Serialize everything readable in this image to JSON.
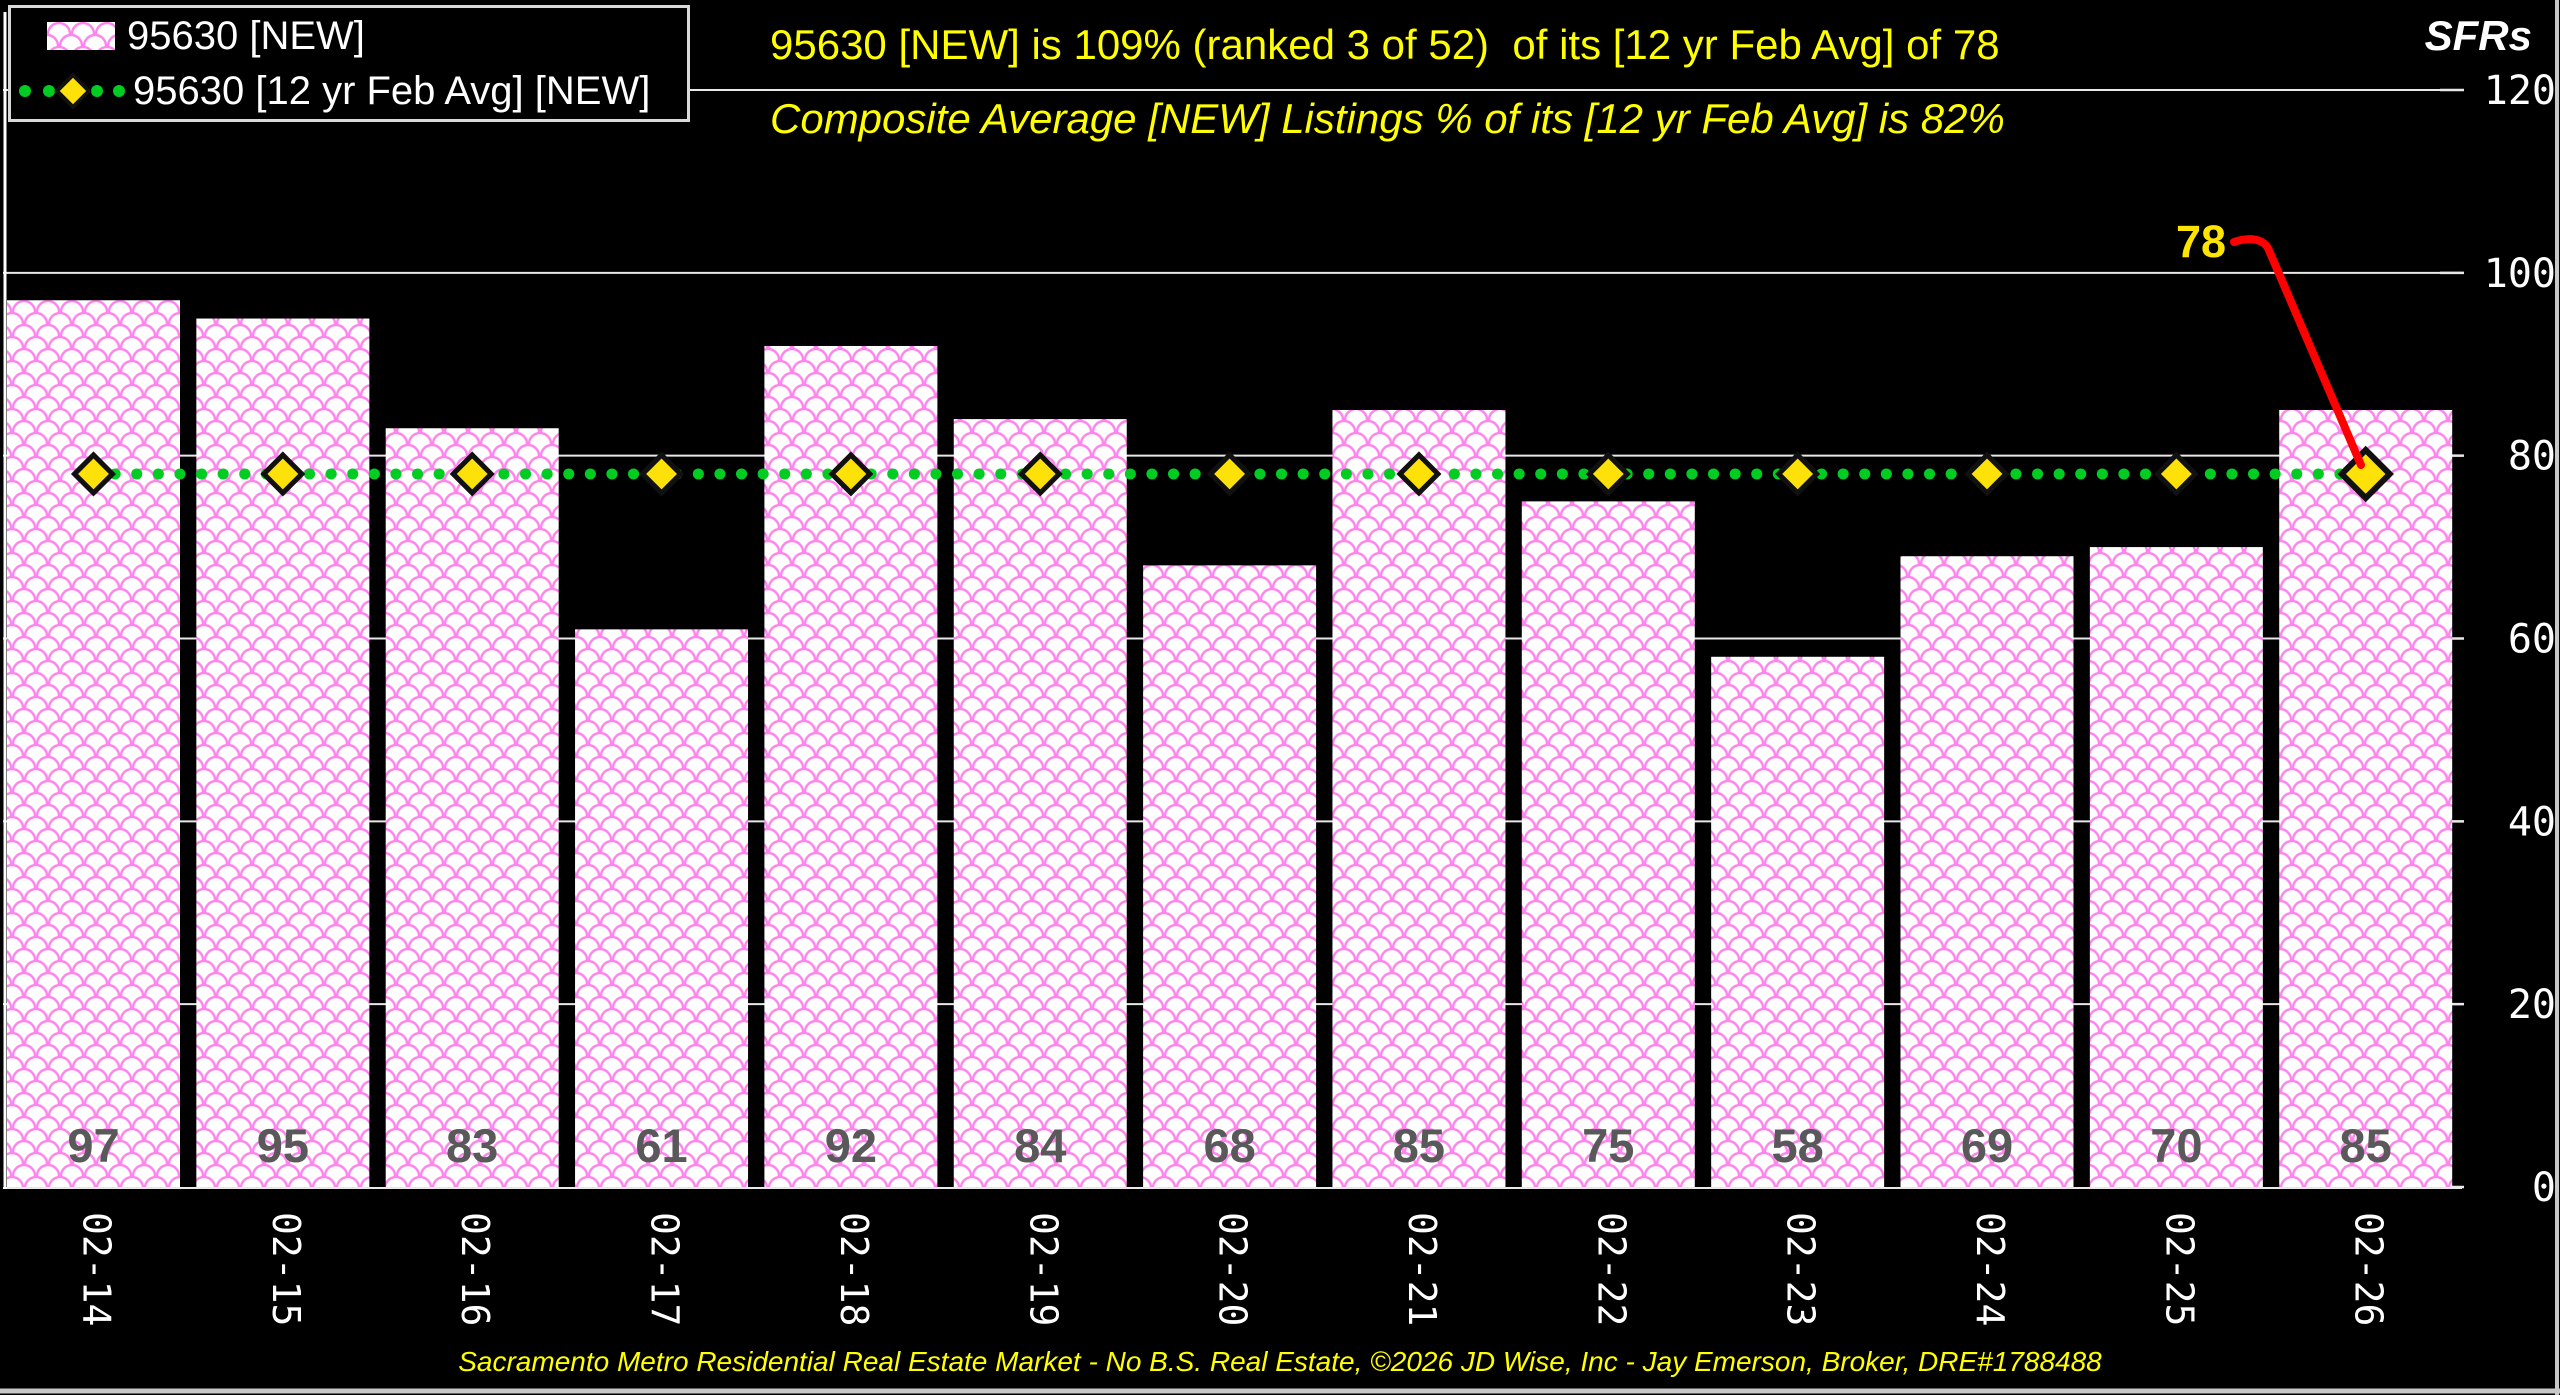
{
  "header": {
    "title_line1": "95630 [NEW] is 109% (ranked 3 of 52)  of its [12 yr Feb Avg] of 78",
    "title_line2": "Composite Average [NEW] Listings % of its [12 yr Feb Avg] is 82%",
    "axis_unit_label": "SFRs"
  },
  "legend": {
    "series1_label": "95630 [NEW]",
    "series2_label": "95630 [12 yr Feb Avg] [NEW]"
  },
  "annotation": {
    "avg_callout": "78"
  },
  "footer": {
    "credit": "Sacramento Metro Residential Real Estate Market - No B.S. Real Estate, ©2026 JD Wise, Inc - Jay Emerson, Broker, DRE#1788488"
  },
  "colors": {
    "background": "#000000",
    "bar_pattern_pink": "#FF85EE",
    "bar_fill": "#FFFFFF",
    "avg_line_green": "#00CC22",
    "marker_yellow": "#FFE10A",
    "marker_outline": "#111111",
    "title_yellow": "#FFFF00",
    "value_label_gray": "#595959",
    "grid_white": "#E8E8E8",
    "callout_red": "#FF0000",
    "frame_gray": "#C8C8C8",
    "text_white": "#FFFFFF"
  },
  "chart_data": {
    "type": "bar",
    "title": "95630 [NEW] is 109% (ranked 3 of 52)  of its [12 yr Feb Avg] of 78",
    "subtitle": "Composite Average [NEW] Listings % of its [12 yr Feb Avg] is 82%",
    "categories": [
      "02-14",
      "02-15",
      "02-16",
      "02-17",
      "02-18",
      "02-19",
      "02-20",
      "02-21",
      "02-22",
      "02-23",
      "02-24",
      "02-25",
      "02-26"
    ],
    "series": [
      {
        "name": "95630 [NEW]",
        "type": "bar",
        "values": [
          97,
          95,
          83,
          61,
          92,
          84,
          68,
          85,
          75,
          58,
          69,
          70,
          85
        ]
      },
      {
        "name": "95630 [12 yr Feb Avg] [NEW]",
        "type": "line",
        "values": [
          78,
          78,
          78,
          78,
          78,
          78,
          78,
          78,
          78,
          78,
          78,
          78,
          78
        ]
      }
    ],
    "average_value": 78,
    "annotated_point": {
      "category": "02-26",
      "value": 78,
      "label": "78"
    },
    "xlabel": "",
    "ylabel": "SFRs",
    "ylim": [
      0,
      120
    ],
    "yticks": [
      0,
      20,
      40,
      60,
      80,
      100,
      120
    ],
    "grid": true,
    "legend_position": "top-left"
  }
}
